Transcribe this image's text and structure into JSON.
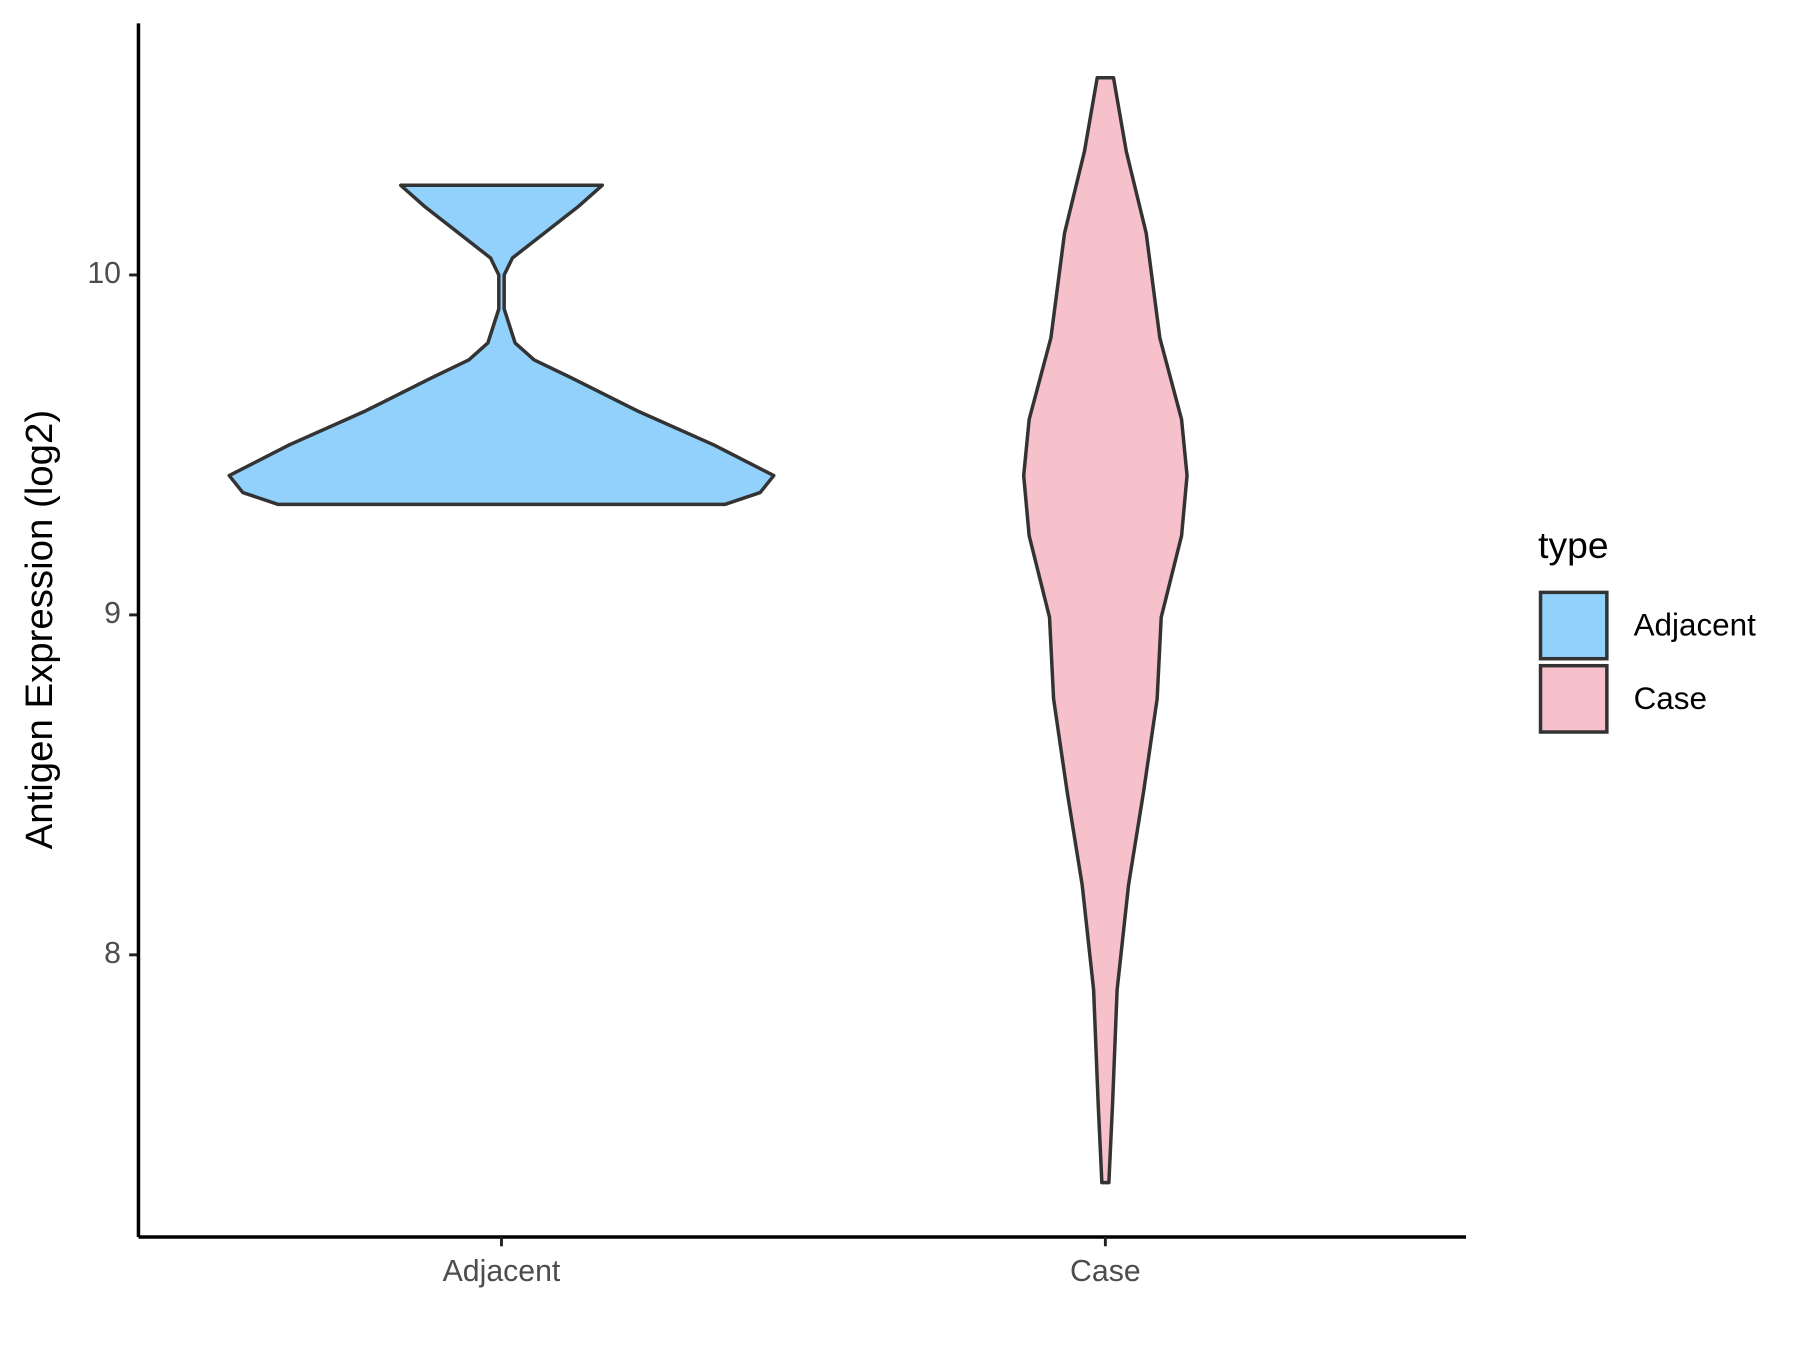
{
  "chart_data": {
    "type": "violin",
    "y_label": "Antigen Expression (log2)",
    "categories": [
      "Adjacent",
      "Case"
    ],
    "series": [
      {
        "name": "Adjacent",
        "color": "#92D1FC",
        "y": [
          10.264,
          10.2,
          10.1,
          10.05,
          10.0,
          9.9,
          9.8,
          9.75,
          9.7,
          9.6,
          9.5,
          9.41,
          9.36,
          9.325
        ],
        "width": [
          0.37,
          0.28,
          0.12,
          0.04,
          0.01,
          0.01,
          0.05,
          0.12,
          0.25,
          0.5,
          0.78,
          1.0,
          0.95,
          0.82
        ]
      },
      {
        "name": "Case",
        "color": "#F7C1CC",
        "y": [
          10.58,
          10.363,
          10.123,
          9.815,
          9.575,
          9.41,
          9.233,
          8.993,
          8.753,
          8.479,
          8.205,
          7.897,
          7.555,
          7.33
        ],
        "width": [
          0.03,
          0.077,
          0.15,
          0.2,
          0.28,
          0.3,
          0.28,
          0.205,
          0.19,
          0.14,
          0.085,
          0.043,
          0.026,
          0.013
        ]
      }
    ],
    "ylim": [
      7.17,
      10.74
    ],
    "yticks": [
      8,
      9,
      10
    ],
    "legend_title": "type",
    "legend_position": "right",
    "grid": false
  }
}
